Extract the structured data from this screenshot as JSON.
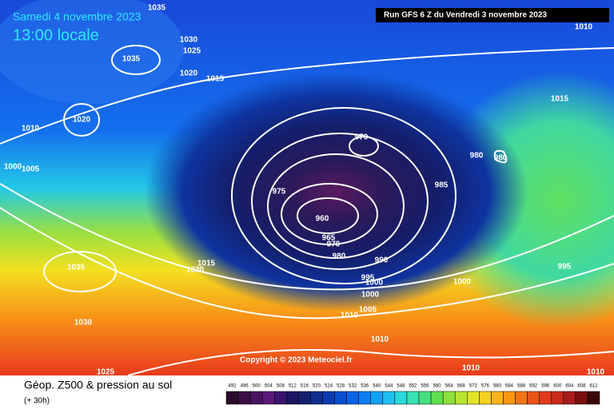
{
  "header": {
    "date": "Samedi 4 novembre 2023",
    "time": "13:00 locale",
    "run": "Run GFS 6 Z du Vendredi 3 novembre 2023"
  },
  "map": {
    "isobar_labels": [
      1035,
      1030,
      1025,
      1035,
      1020,
      1015,
      1020,
      1010,
      1000,
      1005,
      970,
      980,
      980,
      975,
      985,
      960,
      965,
      970,
      980,
      990,
      995,
      1000,
      1000,
      1000,
      1005,
      1010,
      1010,
      1010,
      1010,
      1010,
      1015,
      995,
      1035,
      1015,
      1020,
      1030,
      1025
    ],
    "copyright": "Copyright © 2023 Meteociel.fr"
  },
  "footer": {
    "title": "Géop. Z500 & pression au sol",
    "lead": "(+ 30h)"
  },
  "legend": {
    "scale": [
      492,
      496,
      500,
      504,
      508,
      512,
      516,
      520,
      524,
      528,
      532,
      536,
      540,
      544,
      548,
      552,
      556,
      560,
      564,
      568,
      572,
      576,
      580,
      584,
      588,
      592,
      596,
      600,
      604,
      608,
      612
    ],
    "colors": [
      "#2a0a2a",
      "#3a0f45",
      "#4a145e",
      "#5a1a78",
      "#3a1470",
      "#1c1560",
      "#14206e",
      "#102e8c",
      "#0b3caf",
      "#0a4ed0",
      "#0a62e6",
      "#0c7ef2",
      "#14a0f4",
      "#1ec0f0",
      "#2ad8dc",
      "#38e0b0",
      "#46e080",
      "#60e050",
      "#8ce03c",
      "#b8e430",
      "#e0e428",
      "#f4d020",
      "#f8b418",
      "#f89614",
      "#f07414",
      "#e85418",
      "#e03a1c",
      "#c82a1c",
      "#a81c1c",
      "#781010",
      "#3a0606"
    ]
  }
}
